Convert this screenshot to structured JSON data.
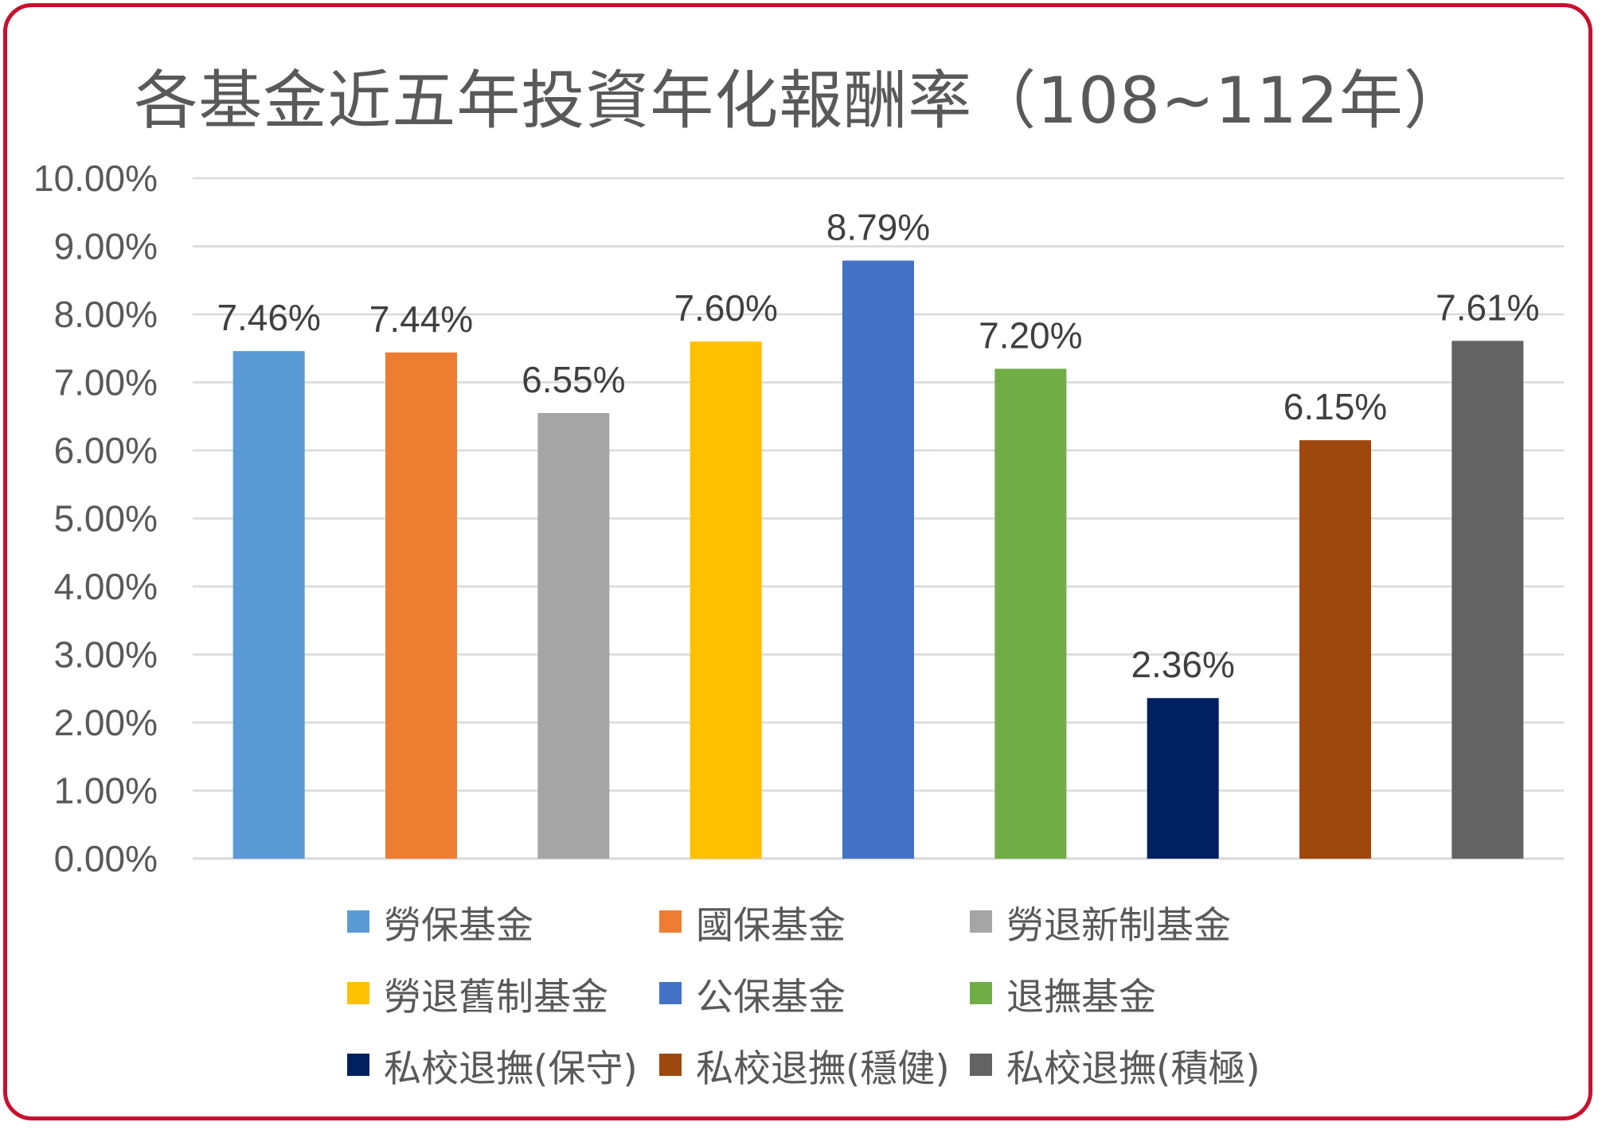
{
  "chart_data": {
    "type": "bar",
    "title": "各基金近五年投資年化報酬率（108~112年）",
    "xlabel": "",
    "ylabel": "",
    "ylim": [
      0,
      0.1
    ],
    "yticks": [
      "0.00%",
      "1.00%",
      "2.00%",
      "3.00%",
      "4.00%",
      "5.00%",
      "6.00%",
      "7.00%",
      "8.00%",
      "9.00%",
      "10.00%"
    ],
    "grid": true,
    "legend_position": "bottom",
    "categories": [
      "勞保基金",
      "國保基金",
      "勞退新制基金",
      "勞退舊制基金",
      "公保基金",
      "退撫基金",
      "私校退撫(保守)",
      "私校退撫(穩健)",
      "私校退撫(積極)"
    ],
    "values": [
      0.0746,
      0.0744,
      0.0655,
      0.076,
      0.0879,
      0.072,
      0.0236,
      0.0615,
      0.0761
    ],
    "data_labels": [
      "7.46%",
      "7.44%",
      "6.55%",
      "7.60%",
      "8.79%",
      "7.20%",
      "2.36%",
      "6.15%",
      "7.61%"
    ],
    "colors": [
      "#5b9bd5",
      "#ed7d31",
      "#a5a5a5",
      "#ffc000",
      "#4472c4",
      "#70ad47",
      "#002060",
      "#9e480e",
      "#636363"
    ]
  },
  "style": {
    "frame_color": "#c8102e",
    "text_color": "#595959",
    "grid_color": "#d9d9d9"
  }
}
